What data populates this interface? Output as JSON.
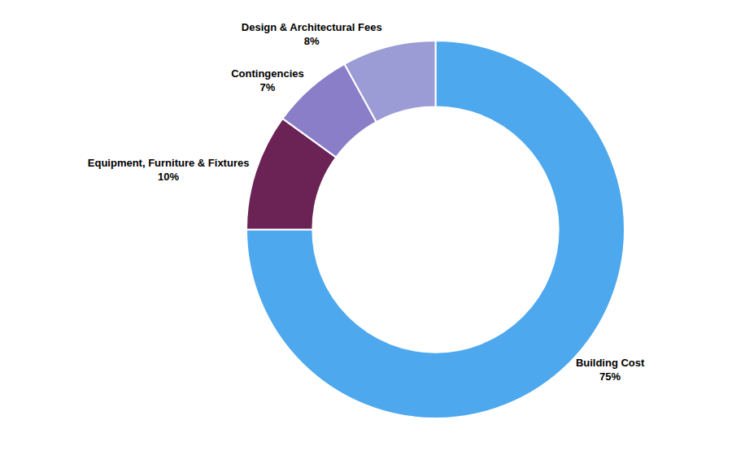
{
  "chart_data": {
    "type": "donut",
    "categories": [
      "Building Cost",
      "Equipment, Furniture & Fixtures",
      "Contingencies",
      "Design & Architectural Fees"
    ],
    "values": [
      75,
      10,
      7,
      8
    ],
    "value_labels": [
      "75%",
      "10%",
      "7%",
      "8%"
    ],
    "colors": [
      "#4DA8EE",
      "#6B2255",
      "#8B7EC8",
      "#9B9BD6"
    ],
    "data_labels": true
  }
}
